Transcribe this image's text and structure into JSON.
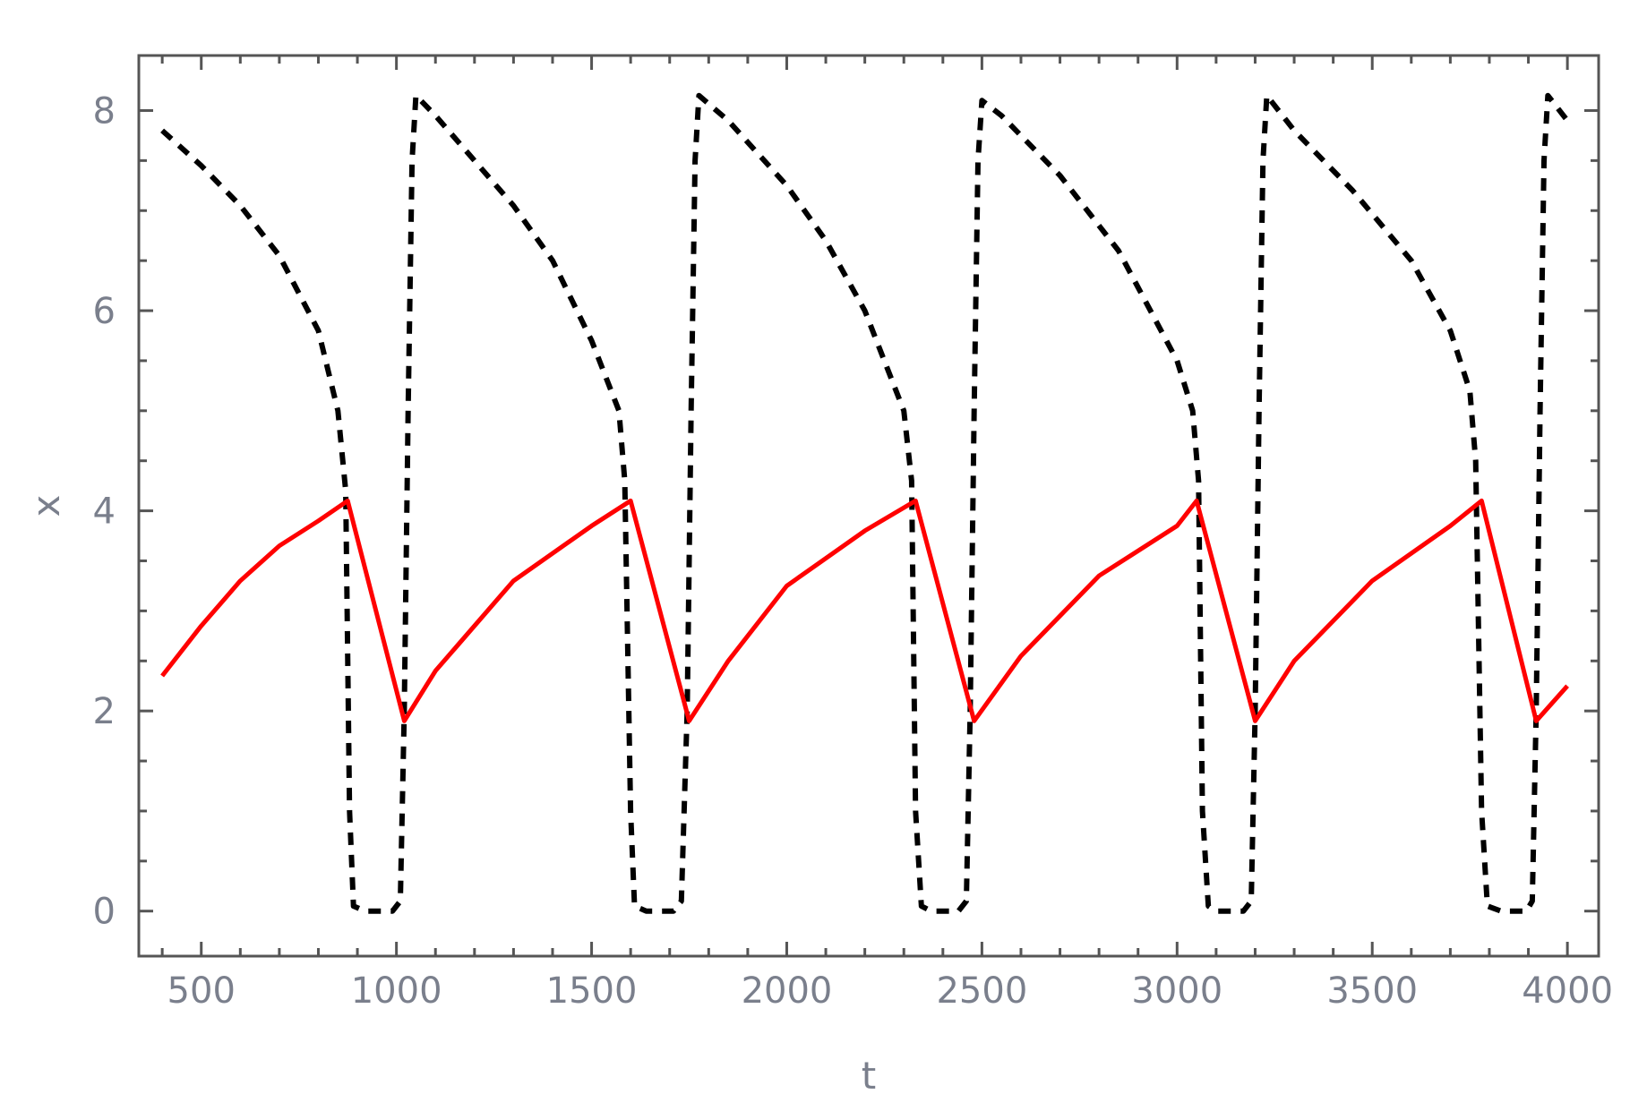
{
  "chart_data": {
    "type": "line",
    "xlabel": "t",
    "ylabel": "x",
    "xlim": [
      340,
      4080
    ],
    "ylim": [
      -0.45,
      8.55
    ],
    "x_ticks": [
      500,
      1000,
      1500,
      2000,
      2500,
      3000,
      3500,
      4000
    ],
    "x_tick_labels": [
      "500",
      "1000",
      "1500",
      "2000",
      "2500",
      "3000",
      "3500",
      "4000"
    ],
    "y_ticks": [
      0,
      2,
      4,
      6,
      8
    ],
    "y_tick_labels": [
      "0",
      "2",
      "4",
      "6",
      "8"
    ],
    "grid": false,
    "series": [
      {
        "style": "dashed",
        "color": "#000000",
        "points": [
          [
            400,
            7.8
          ],
          [
            500,
            7.45
          ],
          [
            600,
            7.05
          ],
          [
            700,
            6.55
          ],
          [
            800,
            5.8
          ],
          [
            850,
            5.0
          ],
          [
            870,
            4.2
          ],
          [
            880,
            1.0
          ],
          [
            890,
            0.05
          ],
          [
            920,
            0.0
          ],
          [
            990,
            0.0
          ],
          [
            1010,
            0.1
          ],
          [
            1020,
            2.0
          ],
          [
            1030,
            5.0
          ],
          [
            1040,
            7.5
          ],
          [
            1050,
            8.15
          ],
          [
            1100,
            7.95
          ],
          [
            1200,
            7.5
          ],
          [
            1300,
            7.05
          ],
          [
            1400,
            6.5
          ],
          [
            1500,
            5.7
          ],
          [
            1570,
            5.0
          ],
          [
            1585,
            4.3
          ],
          [
            1600,
            1.0
          ],
          [
            1610,
            0.05
          ],
          [
            1640,
            0.0
          ],
          [
            1710,
            0.0
          ],
          [
            1730,
            0.1
          ],
          [
            1745,
            2.0
          ],
          [
            1755,
            5.0
          ],
          [
            1765,
            7.5
          ],
          [
            1775,
            8.15
          ],
          [
            1850,
            7.9
          ],
          [
            2000,
            7.25
          ],
          [
            2100,
            6.7
          ],
          [
            2200,
            6.0
          ],
          [
            2300,
            5.0
          ],
          [
            2320,
            4.3
          ],
          [
            2330,
            1.0
          ],
          [
            2345,
            0.05
          ],
          [
            2370,
            0.0
          ],
          [
            2440,
            0.0
          ],
          [
            2460,
            0.1
          ],
          [
            2470,
            2.0
          ],
          [
            2480,
            5.0
          ],
          [
            2490,
            7.5
          ],
          [
            2500,
            8.1
          ],
          [
            2550,
            7.95
          ],
          [
            2700,
            7.35
          ],
          [
            2850,
            6.6
          ],
          [
            3000,
            5.5
          ],
          [
            3040,
            5.0
          ],
          [
            3055,
            4.3
          ],
          [
            3065,
            1.0
          ],
          [
            3080,
            0.05
          ],
          [
            3100,
            0.0
          ],
          [
            3170,
            0.0
          ],
          [
            3190,
            0.1
          ],
          [
            3200,
            2.0
          ],
          [
            3210,
            5.0
          ],
          [
            3220,
            7.5
          ],
          [
            3230,
            8.15
          ],
          [
            3300,
            7.8
          ],
          [
            3450,
            7.2
          ],
          [
            3600,
            6.5
          ],
          [
            3700,
            5.8
          ],
          [
            3750,
            5.2
          ],
          [
            3765,
            4.5
          ],
          [
            3780,
            1.0
          ],
          [
            3795,
            0.05
          ],
          [
            3830,
            0.0
          ],
          [
            3895,
            0.0
          ],
          [
            3910,
            0.1
          ],
          [
            3920,
            2.0
          ],
          [
            3930,
            5.0
          ],
          [
            3940,
            7.5
          ],
          [
            3950,
            8.15
          ],
          [
            4000,
            7.9
          ]
        ]
      },
      {
        "style": "solid",
        "color": "#ff0000",
        "points": [
          [
            400,
            2.35
          ],
          [
            500,
            2.85
          ],
          [
            600,
            3.3
          ],
          [
            700,
            3.65
          ],
          [
            800,
            3.9
          ],
          [
            875,
            4.1
          ],
          [
            1020,
            1.9
          ],
          [
            1100,
            2.4
          ],
          [
            1300,
            3.3
          ],
          [
            1500,
            3.85
          ],
          [
            1600,
            4.1
          ],
          [
            1750,
            1.9
          ],
          [
            1850,
            2.5
          ],
          [
            2000,
            3.25
          ],
          [
            2200,
            3.8
          ],
          [
            2330,
            4.1
          ],
          [
            2480,
            1.9
          ],
          [
            2600,
            2.55
          ],
          [
            2800,
            3.35
          ],
          [
            3000,
            3.85
          ],
          [
            3050,
            4.1
          ],
          [
            3200,
            1.9
          ],
          [
            3300,
            2.5
          ],
          [
            3500,
            3.3
          ],
          [
            3700,
            3.85
          ],
          [
            3780,
            4.1
          ],
          [
            3920,
            1.9
          ],
          [
            4000,
            2.25
          ]
        ]
      }
    ]
  }
}
